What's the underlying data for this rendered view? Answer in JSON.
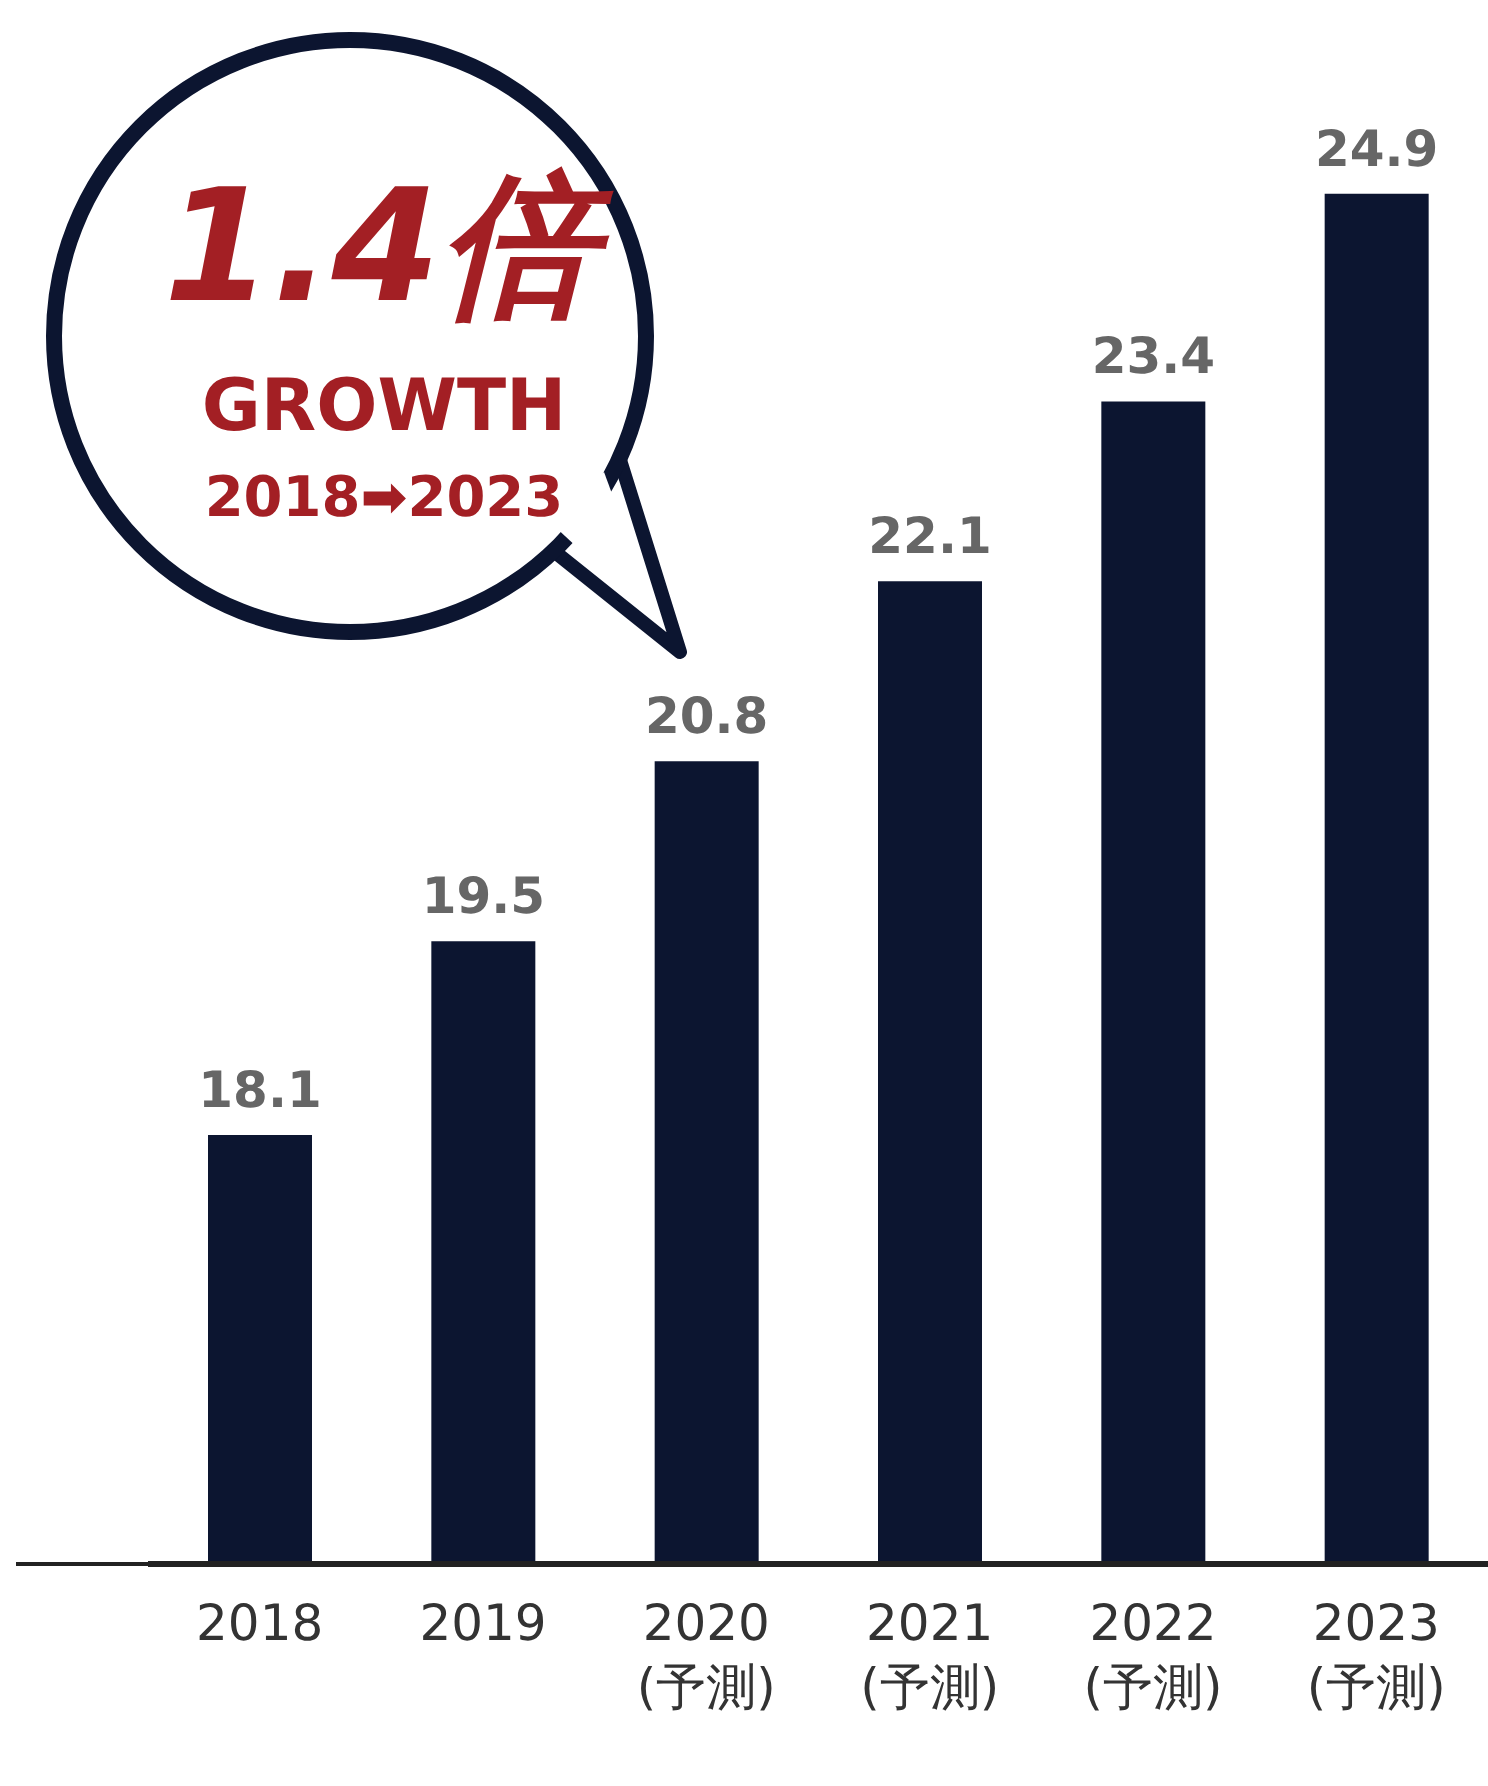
{
  "chart_data": {
    "type": "bar",
    "categories": [
      "2018",
      "2019",
      "2020\n(予測)",
      "2021\n(予測)",
      "2022\n(予測)",
      "2023\n(予測)"
    ],
    "values": [
      18.1,
      19.5,
      20.8,
      22.1,
      23.4,
      24.9
    ],
    "color": "#0c1530",
    "data_labels": true,
    "ylim": [
      15,
      26.3
    ],
    "yticks": [
      {
        "value": 15,
        "label": null
      }
    ],
    "annotations": [
      "1.4倍",
      "GROWTH",
      "2018➡2023"
    ]
  }
}
